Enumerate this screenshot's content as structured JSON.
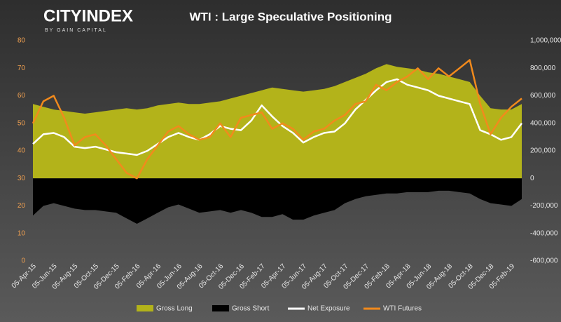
{
  "logo": {
    "name": "CITYINDEX",
    "tagline": "BY GAIN CAPITAL"
  },
  "chart_data": {
    "type": "area-line",
    "title": "WTI : Large Speculative Positioning",
    "categories": [
      "05-Apr-15",
      null,
      "05-Jun-15",
      null,
      "05-Aug-15",
      null,
      "05-Oct-15",
      null,
      "05-Dec-15",
      null,
      "05-Feb-16",
      null,
      "05-Apr-16",
      null,
      "05-Jun-16",
      null,
      "05-Aug-16",
      null,
      "05-Oct-16",
      null,
      "05-Dec-16",
      null,
      "05-Feb-17",
      null,
      "05-Apr-17",
      null,
      "05-Jun-17",
      null,
      "05-Aug-17",
      null,
      "05-Oct-17",
      null,
      "05-Dec-17",
      null,
      "05-Feb-18",
      null,
      "05-Apr-18",
      null,
      "05-Jun-18",
      null,
      "05-Aug-18",
      null,
      "05-Oct-18",
      null,
      "05-Dec-18",
      null,
      "05-Feb-19",
      null
    ],
    "series": [
      {
        "name": "Gross Long",
        "color": "#b3b31a",
        "kind": "area",
        "axis": "y2",
        "values": [
          540000,
          520000,
          500000,
          490000,
          480000,
          470000,
          480000,
          490000,
          500000,
          510000,
          500000,
          510000,
          530000,
          540000,
          550000,
          540000,
          540000,
          550000,
          560000,
          580000,
          600000,
          620000,
          640000,
          660000,
          650000,
          640000,
          630000,
          640000,
          650000,
          670000,
          700000,
          730000,
          760000,
          800000,
          830000,
          810000,
          800000,
          790000,
          770000,
          760000,
          740000,
          720000,
          700000,
          600000,
          510000,
          500000,
          500000,
          540000
        ]
      },
      {
        "name": "Gross Short",
        "color": "#000000",
        "kind": "area",
        "axis": "y2",
        "values": [
          -270000,
          -200000,
          -180000,
          -200000,
          -220000,
          -230000,
          -230000,
          -240000,
          -250000,
          -290000,
          -330000,
          -290000,
          -250000,
          -210000,
          -190000,
          -220000,
          -250000,
          -240000,
          -230000,
          -250000,
          -230000,
          -250000,
          -280000,
          -280000,
          -260000,
          -300000,
          -300000,
          -270000,
          -250000,
          -230000,
          -180000,
          -150000,
          -130000,
          -120000,
          -110000,
          -110000,
          -100000,
          -100000,
          -100000,
          -90000,
          -90000,
          -100000,
          -110000,
          -150000,
          -180000,
          -190000,
          -200000,
          -150000
        ]
      },
      {
        "name": "Net Exposure",
        "color": "#ffffff",
        "kind": "line",
        "axis": "y2",
        "values": [
          250000,
          320000,
          330000,
          300000,
          230000,
          220000,
          230000,
          210000,
          190000,
          180000,
          170000,
          200000,
          250000,
          300000,
          330000,
          300000,
          280000,
          320000,
          380000,
          360000,
          350000,
          420000,
          530000,
          450000,
          380000,
          330000,
          260000,
          300000,
          330000,
          340000,
          400000,
          500000,
          570000,
          640000,
          700000,
          720000,
          680000,
          660000,
          640000,
          600000,
          580000,
          560000,
          540000,
          350000,
          320000,
          280000,
          300000,
          400000
        ]
      },
      {
        "name": "WTI Futures",
        "color": "#f28a1c",
        "kind": "line",
        "axis": "y",
        "values": [
          50,
          58,
          60,
          52,
          42,
          45,
          46,
          42,
          37,
          32,
          30,
          37,
          42,
          47,
          49,
          46,
          44,
          45,
          50,
          45,
          52,
          53,
          54,
          48,
          50,
          48,
          44,
          47,
          48,
          51,
          53,
          57,
          58,
          64,
          62,
          65,
          67,
          70,
          66,
          70,
          67,
          70,
          73,
          57,
          46,
          52,
          56,
          59
        ]
      }
    ],
    "ylim": [
      0,
      80
    ],
    "yticks": [
      0,
      10,
      20,
      30,
      40,
      50,
      60,
      70,
      80
    ],
    "y2lim": [
      -600000,
      1000000
    ],
    "y2ticks": [
      {
        "value": -600000,
        "label": "-600,000"
      },
      {
        "value": -400000,
        "label": "-400,000"
      },
      {
        "value": -200000,
        "label": "-200,000"
      },
      0,
      {
        "value": 200000,
        "label": "200,000"
      },
      {
        "value": 400000,
        "label": "400,000"
      },
      {
        "value": 600000,
        "label": "600,000"
      },
      {
        "value": 800000,
        "label": "800,000"
      },
      {
        "value": 1000000,
        "label": "1,000,000"
      }
    ],
    "legend": "bottom"
  }
}
